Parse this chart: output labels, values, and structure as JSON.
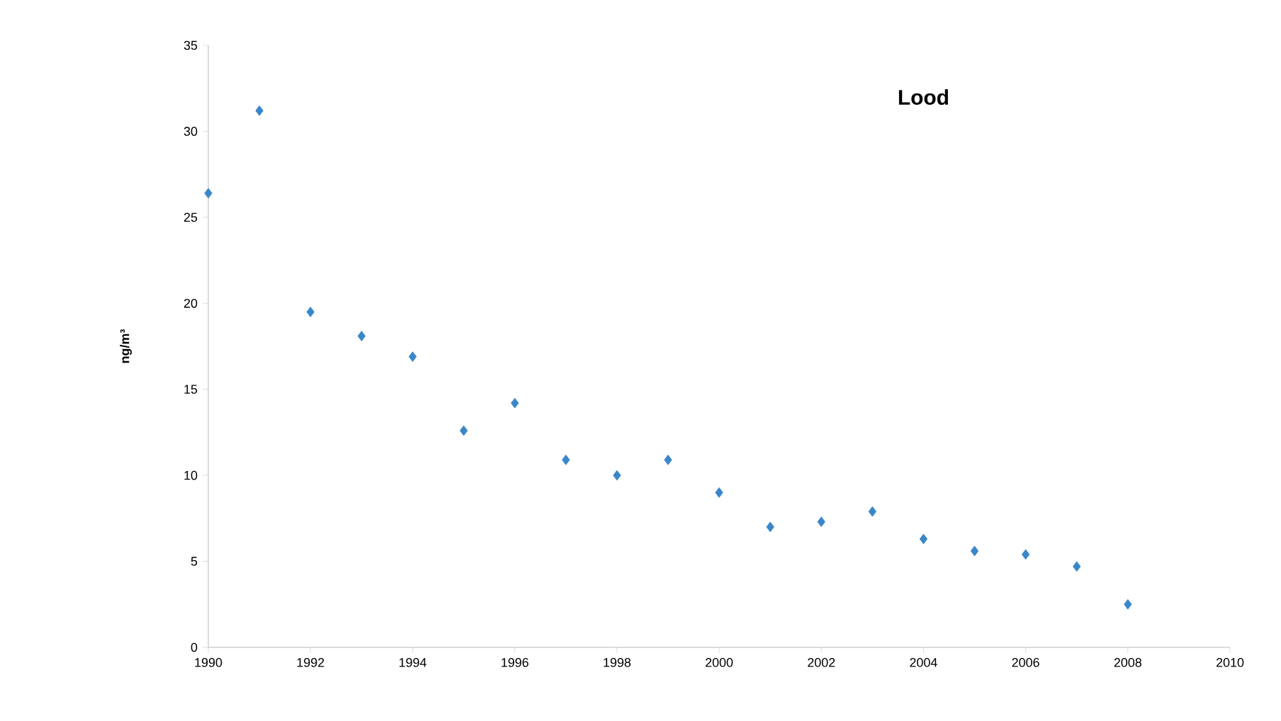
{
  "chart_data": {
    "type": "scatter",
    "title": "Lood",
    "ylabel": "ng/m³",
    "x": [
      1990,
      1991,
      1992,
      1993,
      1994,
      1995,
      1996,
      1997,
      1998,
      1999,
      2000,
      2001,
      2002,
      2003,
      2004,
      2005,
      2006,
      2007,
      2008
    ],
    "values": [
      26.4,
      31.2,
      19.5,
      18.1,
      16.9,
      12.6,
      14.2,
      10.9,
      10.0,
      10.9,
      9.0,
      7.0,
      7.3,
      7.9,
      6.3,
      5.6,
      5.4,
      4.7,
      2.5
    ],
    "color": "#3a87c8",
    "marker": "diamond",
    "xlim": [
      1990,
      2010
    ],
    "xticks": [
      1990,
      1992,
      1994,
      1996,
      1998,
      2000,
      2002,
      2004,
      2006,
      2008,
      2010
    ],
    "ylim": [
      0,
      35
    ],
    "yticks": [
      0,
      5,
      10,
      15,
      20,
      25,
      30,
      35
    ],
    "grid": false
  }
}
